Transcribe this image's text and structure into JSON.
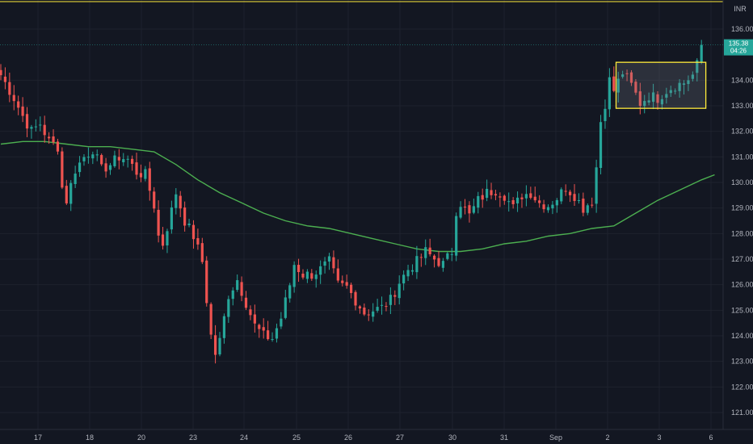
{
  "chart_data": {
    "type": "candlestick",
    "currency": "INR",
    "current_price": "135.38",
    "countdown": "04:26",
    "ylim": [
      120.5,
      136.6
    ],
    "y_ticks": [
      "136.00",
      "134.00",
      "133.00",
      "132.00",
      "131.00",
      "130.00",
      "129.00",
      "128.00",
      "127.00",
      "126.00",
      "125.00",
      "124.00",
      "123.00",
      "122.00",
      "121.00"
    ],
    "x_ticks": [
      "17",
      "18",
      "20",
      "23",
      "24",
      "25",
      "26",
      "27",
      "30",
      "31",
      "Sep",
      "2",
      "3",
      "6"
    ],
    "highlight_box": {
      "x_from": 140.5,
      "x_to": 161,
      "y_from": 132.9,
      "y_to": 134.7
    },
    "colors": {
      "up": "#26a69a",
      "down": "#ef5350",
      "ma": "#4caf50",
      "box": "#ffeb3b",
      "current": "#26a69a"
    },
    "moving_average": [
      [
        0,
        131.5
      ],
      [
        5,
        131.6
      ],
      [
        10,
        131.6
      ],
      [
        15,
        131.5
      ],
      [
        20,
        131.4
      ],
      [
        25,
        131.4
      ],
      [
        30,
        131.3
      ],
      [
        35,
        131.2
      ],
      [
        40,
        130.7
      ],
      [
        45,
        130.1
      ],
      [
        50,
        129.6
      ],
      [
        55,
        129.2
      ],
      [
        60,
        128.8
      ],
      [
        65,
        128.5
      ],
      [
        70,
        128.3
      ],
      [
        75,
        128.2
      ],
      [
        80,
        128.0
      ],
      [
        85,
        127.8
      ],
      [
        90,
        127.6
      ],
      [
        95,
        127.4
      ],
      [
        100,
        127.3
      ],
      [
        105,
        127.3
      ],
      [
        110,
        127.4
      ],
      [
        115,
        127.6
      ],
      [
        120,
        127.7
      ],
      [
        125,
        127.9
      ],
      [
        130,
        128.0
      ],
      [
        135,
        128.2
      ],
      [
        140,
        128.3
      ],
      [
        145,
        128.8
      ],
      [
        150,
        129.3
      ],
      [
        155,
        129.7
      ],
      [
        160,
        130.1
      ],
      [
        163,
        130.3
      ]
    ],
    "anchors": [
      [
        0,
        134.2
      ],
      [
        3,
        133.3
      ],
      [
        5,
        132.6
      ],
      [
        7,
        132.0
      ],
      [
        9,
        132.3
      ],
      [
        11,
        131.6
      ],
      [
        13,
        131.4
      ],
      [
        14,
        129.8
      ],
      [
        15,
        129.3
      ],
      [
        17,
        130.5
      ],
      [
        19,
        131.0
      ],
      [
        21,
        131.3
      ],
      [
        23,
        130.5
      ],
      [
        25,
        130.7
      ],
      [
        27,
        131.0
      ],
      [
        29,
        130.9
      ],
      [
        31,
        130.4
      ],
      [
        33,
        130.3
      ],
      [
        35,
        129.1
      ],
      [
        36,
        127.9
      ],
      [
        37,
        127.6
      ],
      [
        39,
        128.9
      ],
      [
        40,
        129.6
      ],
      [
        42,
        128.5
      ],
      [
        44,
        127.9
      ],
      [
        46,
        126.9
      ],
      [
        47,
        125.4
      ],
      [
        48,
        124.0
      ],
      [
        49,
        123.3
      ],
      [
        50,
        123.8
      ],
      [
        52,
        125.6
      ],
      [
        54,
        126.2
      ],
      [
        56,
        125.3
      ],
      [
        58,
        124.4
      ],
      [
        60,
        124.0
      ],
      [
        62,
        123.9
      ],
      [
        64,
        124.7
      ],
      [
        66,
        126.0
      ],
      [
        67,
        126.8
      ],
      [
        69,
        126.4
      ],
      [
        71,
        126.4
      ],
      [
        73,
        126.6
      ],
      [
        75,
        126.9
      ],
      [
        77,
        126.0
      ],
      [
        79,
        125.9
      ],
      [
        81,
        125.4
      ],
      [
        83,
        124.9
      ],
      [
        85,
        125.0
      ],
      [
        87,
        125.1
      ],
      [
        89,
        125.4
      ],
      [
        91,
        126.1
      ],
      [
        93,
        126.6
      ],
      [
        95,
        126.9
      ],
      [
        97,
        127.3
      ],
      [
        99,
        127.0
      ],
      [
        101,
        126.8
      ],
      [
        103,
        127.3
      ],
      [
        104,
        128.9
      ],
      [
        105,
        129.2
      ],
      [
        107,
        128.7
      ],
      [
        109,
        129.3
      ],
      [
        111,
        129.6
      ],
      [
        113,
        129.7
      ],
      [
        115,
        129.5
      ],
      [
        117,
        129.0
      ],
      [
        119,
        129.5
      ],
      [
        121,
        129.6
      ],
      [
        123,
        129.2
      ],
      [
        125,
        129.1
      ],
      [
        127,
        129.4
      ],
      [
        129,
        129.8
      ],
      [
        131,
        129.5
      ],
      [
        133,
        129.0
      ],
      [
        135,
        129.3
      ],
      [
        136,
        130.6
      ],
      [
        137,
        132.4
      ],
      [
        138,
        133.1
      ],
      [
        139,
        134.0
      ],
      [
        140,
        133.6
      ],
      [
        142,
        134.3
      ],
      [
        144,
        133.8
      ],
      [
        146,
        133.1
      ],
      [
        148,
        133.4
      ],
      [
        150,
        133.3
      ],
      [
        152,
        133.6
      ],
      [
        154,
        133.8
      ],
      [
        156,
        133.9
      ],
      [
        158,
        134.2
      ],
      [
        159,
        134.6
      ],
      [
        160,
        135.38
      ]
    ]
  }
}
